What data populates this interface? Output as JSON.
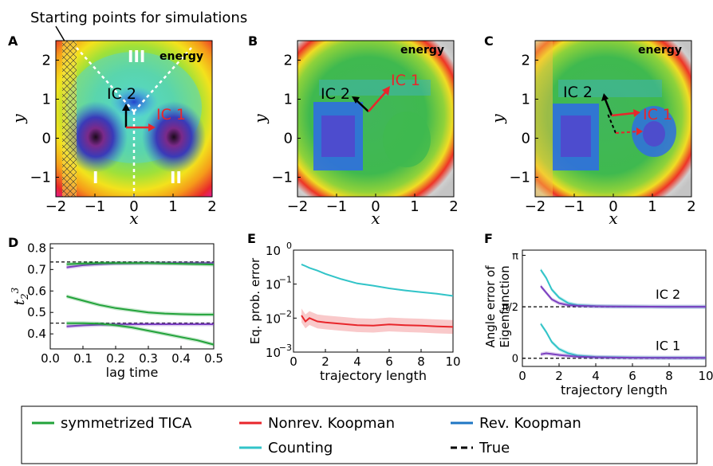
{
  "annotation": "Starting points for simulations",
  "panel_letters": [
    "A",
    "B",
    "C",
    "D",
    "E",
    "F"
  ],
  "energy_label": "energy",
  "regions": [
    "I",
    "II",
    "III"
  ],
  "ic_labels": [
    "IC 1",
    "IC 2"
  ],
  "colors": {
    "tica": "#22a33a",
    "nonrev": "#e8262b",
    "rev": "#1f77c4",
    "counting": "#32c4c8",
    "true": "#000000",
    "purple": "#7b3fc0"
  },
  "chart_data": [
    {
      "type": "heatmap",
      "panel": "A",
      "description_free": true,
      "xlabel": "x",
      "ylabel": "y",
      "xlim": [
        -2,
        2
      ],
      "ylim": [
        -1.5,
        2.5
      ],
      "xticks": [
        "−2",
        "−1",
        "0",
        "1",
        "2"
      ],
      "yticks": [
        "2",
        "1",
        "0",
        "−1"
      ],
      "vectors": [
        {
          "name": "IC 1",
          "dx": 0.6,
          "dy": 0.0
        },
        {
          "name": "IC 2",
          "dx": 0.0,
          "dy": 0.5
        }
      ]
    },
    {
      "type": "heatmap",
      "panel": "B",
      "xlabel": "x",
      "ylabel": "y",
      "xlim": [
        -2,
        2
      ],
      "ylim": [
        -1.5,
        2.5
      ],
      "xticks": [
        "−2",
        "−1",
        "0",
        "1",
        "2"
      ],
      "yticks": [
        "2",
        "1",
        "0",
        "−1"
      ]
    },
    {
      "type": "heatmap",
      "panel": "C",
      "xlabel": "x",
      "ylabel": "y",
      "xlim": [
        -2,
        2
      ],
      "ylim": [
        -1.5,
        2.5
      ],
      "xticks": [
        "−2",
        "−1",
        "0",
        "1",
        "2"
      ],
      "yticks": [
        "2",
        "1",
        "0",
        "−1"
      ]
    },
    {
      "type": "line",
      "panel": "D",
      "xlabel": "lag time",
      "ylabel": "t",
      "ylabel_sub": "2",
      "ylabel_sup": "3",
      "xlim": [
        0.0,
        0.5
      ],
      "ylim": [
        0.33,
        0.82
      ],
      "xticks": [
        "0.0",
        "0.1",
        "0.2",
        "0.3",
        "0.4",
        "0.5"
      ],
      "yticks": [
        "0.8",
        "0.7",
        "0.6",
        "0.5",
        "0.4"
      ],
      "true_values": [
        0.735,
        0.45
      ],
      "x": [
        0.05,
        0.1,
        0.15,
        0.2,
        0.25,
        0.3,
        0.35,
        0.4,
        0.45,
        0.5
      ],
      "series": [
        {
          "color": "purple",
          "values": [
            0.71,
            0.72,
            0.725,
            0.728,
            0.729,
            0.73,
            0.73,
            0.73,
            0.73,
            0.73
          ]
        },
        {
          "color": "tica",
          "values": [
            0.725,
            0.728,
            0.73,
            0.73,
            0.73,
            0.73,
            0.728,
            0.727,
            0.725,
            0.723
          ]
        },
        {
          "color": "tica",
          "values": [
            0.575,
            0.555,
            0.535,
            0.52,
            0.51,
            0.5,
            0.495,
            0.492,
            0.49,
            0.49
          ]
        },
        {
          "color": "purple",
          "values": [
            0.435,
            0.44,
            0.443,
            0.444,
            0.445,
            0.445,
            0.445,
            0.445,
            0.445,
            0.445
          ]
        },
        {
          "color": "tica",
          "values": [
            0.45,
            0.45,
            0.448,
            0.44,
            0.43,
            0.415,
            0.4,
            0.385,
            0.37,
            0.35
          ]
        }
      ]
    },
    {
      "type": "line",
      "panel": "E",
      "xlabel": "trajectory length",
      "ylabel": "Eq. prob. error",
      "yscale": "log",
      "xlim": [
        0,
        10
      ],
      "ylim": [
        0.001,
        1
      ],
      "xticks": [
        "0",
        "2",
        "4",
        "6",
        "8",
        "10"
      ],
      "yticks": [
        "10",
        "10",
        "10",
        "10"
      ],
      "ytick_exps": [
        "0",
        "−1",
        "−2",
        "−3"
      ],
      "x": [
        0.5,
        0.75,
        1,
        1.5,
        2,
        3,
        4,
        5,
        6,
        7,
        8,
        9,
        10
      ],
      "series": [
        {
          "color": "counting",
          "values": [
            0.38,
            0.34,
            0.3,
            0.25,
            0.2,
            0.14,
            0.105,
            0.09,
            0.075,
            0.065,
            0.058,
            0.052,
            0.045
          ]
        },
        {
          "color": "nonrev",
          "values": [
            0.012,
            0.008,
            0.01,
            0.008,
            0.0075,
            0.0068,
            0.0062,
            0.006,
            0.0065,
            0.0062,
            0.006,
            0.0057,
            0.0055
          ]
        }
      ]
    },
    {
      "type": "line",
      "panel": "F",
      "xlabel": "trajectory length",
      "ylabel": "Angle error of Eigenfunction",
      "xlim": [
        0,
        10
      ],
      "ylim": [
        -0.25,
        3.3
      ],
      "xticks": [
        "0",
        "2",
        "4",
        "6",
        "8",
        "10"
      ],
      "yticks": [
        "π",
        "π/2",
        "0"
      ],
      "true_values": [
        1.5708,
        0
      ],
      "curve_labels": [
        "IC 2",
        "IC 1"
      ],
      "x": [
        1,
        1.3,
        1.6,
        2,
        2.5,
        3,
        4,
        5,
        6,
        8,
        10
      ],
      "series": [
        {
          "color": "counting",
          "values": [
            2.7,
            2.45,
            2.1,
            1.85,
            1.68,
            1.62,
            1.59,
            1.58,
            1.575,
            1.572,
            1.571
          ]
        },
        {
          "color": "purple",
          "values": [
            2.2,
            2.0,
            1.8,
            1.68,
            1.62,
            1.6,
            1.585,
            1.578,
            1.575,
            1.572,
            1.571
          ]
        },
        {
          "color": "counting",
          "values": [
            1.05,
            0.8,
            0.5,
            0.28,
            0.15,
            0.08,
            0.04,
            0.03,
            0.02,
            0.015,
            0.01
          ]
        },
        {
          "color": "purple",
          "values": [
            0.12,
            0.15,
            0.13,
            0.1,
            0.07,
            0.05,
            0.03,
            0.02,
            0.015,
            0.01,
            0.01
          ]
        }
      ]
    }
  ],
  "legend": [
    {
      "label": "symmetrized TICA",
      "color": "tica",
      "dashed": false
    },
    {
      "label": "Nonrev. Koopman",
      "color": "nonrev",
      "dashed": false
    },
    {
      "label": "Rev. Koopman",
      "color": "rev",
      "dashed": false
    },
    {
      "label": "Counting",
      "color": "counting",
      "dashed": false
    },
    {
      "label": "True",
      "color": "true",
      "dashed": true
    }
  ]
}
